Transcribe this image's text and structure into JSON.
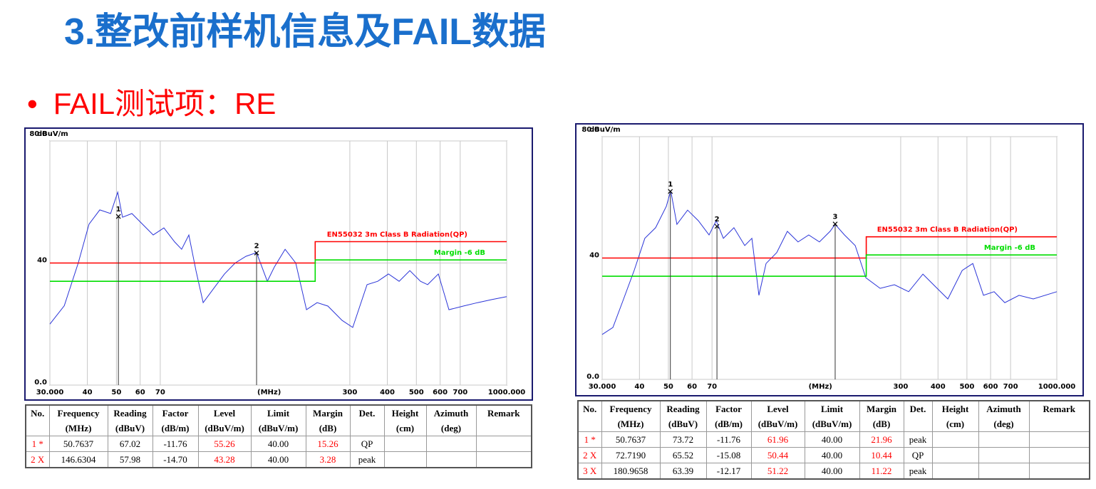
{
  "title": "3.整改前样机信息及FAIL数据",
  "bullet": "FAIL测试项：RE",
  "chart_data": [
    {
      "type": "line",
      "x_scale": "log",
      "xlim": [
        30,
        1000
      ],
      "ylim": [
        0,
        80
      ],
      "grid": true,
      "y_unit": "dBuV/m",
      "x_unit": "(MHz)",
      "yticks": [
        {
          "value": 0,
          "label": "0.0"
        },
        40,
        {
          "value": 80,
          "label": "80.0"
        }
      ],
      "xticks": [
        {
          "value": 30,
          "label": "30.000"
        },
        40,
        50,
        60,
        70,
        300,
        400,
        500,
        600,
        700,
        {
          "value": 1000,
          "label": "1000.000"
        }
      ],
      "series": [
        {
          "color": "#2b35d8",
          "x": [
            30,
            33.5,
            37.3,
            40.5,
            44,
            47.8,
            50.5,
            52.4,
            56.3,
            61.1,
            66.3,
            72,
            78.2,
            82.5,
            87.2,
            92.1,
            97.3,
            105.6,
            114.6,
            124.4,
            135.1,
            146.6,
            159.2,
            168.1,
            182.5,
            198.1,
            215.1,
            233.4,
            253.4,
            282.6,
            306.8,
            324.1,
            342.4,
            371.6,
            403.5,
            438,
            475.5,
            516,
            545.1,
            591.7,
            642.2,
            716.5,
            799.5,
            891.9,
            1000
          ],
          "values": [
            20,
            26,
            40,
            52.7,
            57.4,
            56.2,
            63.2,
            55,
            56.2,
            52.7,
            49.2,
            51.5,
            46.9,
            44.5,
            49.2,
            37.5,
            27,
            31.7,
            36.4,
            40,
            42.2,
            43.4,
            34,
            38.7,
            44.5,
            40,
            24.7,
            27,
            25.9,
            21.2,
            18.9,
            25.9,
            32.9,
            34,
            36.4,
            34,
            37.5,
            34,
            32.9,
            36.4,
            24.7,
            25.9,
            27,
            28,
            29
          ]
        },
        {
          "name": "EN55032 3m Class B Radiation(QP)",
          "color": "#ff0000",
          "x": [
            30,
            230,
            230,
            1000
          ],
          "values": [
            40,
            40,
            47,
            47
          ]
        },
        {
          "name": "Margin -6 dB",
          "color": "#00dd00",
          "x": [
            30,
            230,
            230,
            1000
          ],
          "values": [
            34,
            34,
            41,
            41
          ]
        }
      ],
      "markers": [
        {
          "label": "1",
          "x": 50.7637,
          "value": 55.26
        },
        {
          "label": "2",
          "x": 146.6304,
          "value": 43.28
        }
      ]
    },
    {
      "type": "line",
      "x_scale": "log",
      "xlim": [
        30,
        1000
      ],
      "ylim": [
        0,
        80
      ],
      "grid": true,
      "y_unit": "dBuV/m",
      "x_unit": "(MHz)",
      "yticks": [
        {
          "value": 0,
          "label": "0.0"
        },
        40,
        {
          "value": 80,
          "label": "80.0"
        }
      ],
      "xticks": [
        {
          "value": 30,
          "label": "30.000"
        },
        40,
        50,
        60,
        70,
        300,
        400,
        500,
        600,
        700,
        {
          "value": 1000,
          "label": "1000.000"
        }
      ],
      "series": [
        {
          "color": "#2b35d8",
          "x": [
            30,
            32.6,
            35.4,
            38.4,
            41.7,
            45.3,
            49.2,
            50.9,
            53.4,
            58,
            63,
            68.4,
            72.3,
            76.4,
            82.9,
            90.1,
            95.2,
            100.5,
            106.2,
            115.3,
            125.2,
            135.9,
            147.6,
            160.3,
            174,
            180.9,
            194.5,
            211.2,
            229.3,
            256,
            285.8,
            319,
            356,
            397.5,
            431.5,
            481.9,
            523.2,
            568,
            616.6,
            669.4,
            747.3,
            834.1,
            1000
          ],
          "values": [
            14.8,
            17.1,
            26.5,
            35.9,
            46.5,
            50,
            57,
            62.2,
            51.1,
            55.8,
            52.3,
            47.6,
            52.3,
            46.5,
            50,
            44.1,
            46.5,
            27.7,
            38.2,
            41.8,
            48.8,
            45.3,
            47.6,
            45.3,
            48.8,
            51.1,
            47.6,
            44.1,
            33.5,
            30,
            31.2,
            28.9,
            34.7,
            30,
            26.5,
            35.9,
            38.2,
            27.7,
            28.9,
            25.3,
            27.7,
            26.5,
            28.9
          ]
        },
        {
          "name": "EN55032 3m Class B Radiation(QP)",
          "color": "#ff0000",
          "x": [
            30,
            230,
            230,
            1000
          ],
          "values": [
            40,
            40,
            47,
            47
          ]
        },
        {
          "name": "Margin -6 dB",
          "color": "#00dd00",
          "x": [
            30,
            230,
            230,
            1000
          ],
          "values": [
            34,
            34,
            41,
            41
          ]
        }
      ],
      "markers": [
        {
          "label": "1",
          "x": 50.7637,
          "value": 61.96
        },
        {
          "label": "2",
          "x": 72.719,
          "value": 50.44
        },
        {
          "label": "3",
          "x": 180.9658,
          "value": 51.22
        }
      ]
    }
  ],
  "tables": [
    {
      "headers": [
        [
          "No."
        ],
        [
          "Frequency",
          "(MHz)"
        ],
        [
          "Reading",
          "(dBuV)"
        ],
        [
          "Factor",
          "(dB/m)"
        ],
        [
          "Level",
          "(dBuV/m)"
        ],
        [
          "Limit",
          "(dBuV/m)"
        ],
        [
          "Margin",
          "(dB)"
        ],
        [
          "Det."
        ],
        [
          "Height",
          "(cm)"
        ],
        [
          "Azimuth",
          "(deg)"
        ],
        [
          "Remark"
        ]
      ],
      "rows": [
        [
          "1 *",
          "50.7637",
          "67.02",
          "-11.76",
          "55.26",
          "40.00",
          "15.26",
          "QP"
        ],
        [
          "2 X",
          "146.6304",
          "57.98",
          "-14.70",
          "43.28",
          "40.00",
          "3.28",
          "peak"
        ]
      ]
    },
    {
      "headers": [
        [
          "No."
        ],
        [
          "Frequency",
          "(MHz)"
        ],
        [
          "Reading",
          "(dBuV)"
        ],
        [
          "Factor",
          "(dB/m)"
        ],
        [
          "Level",
          "(dBuV/m)"
        ],
        [
          "Limit",
          "(dBuV/m)"
        ],
        [
          "Margin",
          "(dB)"
        ],
        [
          "Det."
        ],
        [
          "Height",
          "(cm)"
        ],
        [
          "Azimuth",
          "(deg)"
        ],
        [
          "Remark"
        ]
      ],
      "rows": [
        [
          "1 *",
          "50.7637",
          "73.72",
          "-11.76",
          "61.96",
          "40.00",
          "21.96",
          "peak"
        ],
        [
          "2 X",
          "72.7190",
          "65.52",
          "-15.08",
          "50.44",
          "40.00",
          "10.44",
          "QP"
        ],
        [
          "3 X",
          "180.9658",
          "63.39",
          "-12.17",
          "51.22",
          "40.00",
          "11.22",
          "peak"
        ]
      ]
    }
  ]
}
